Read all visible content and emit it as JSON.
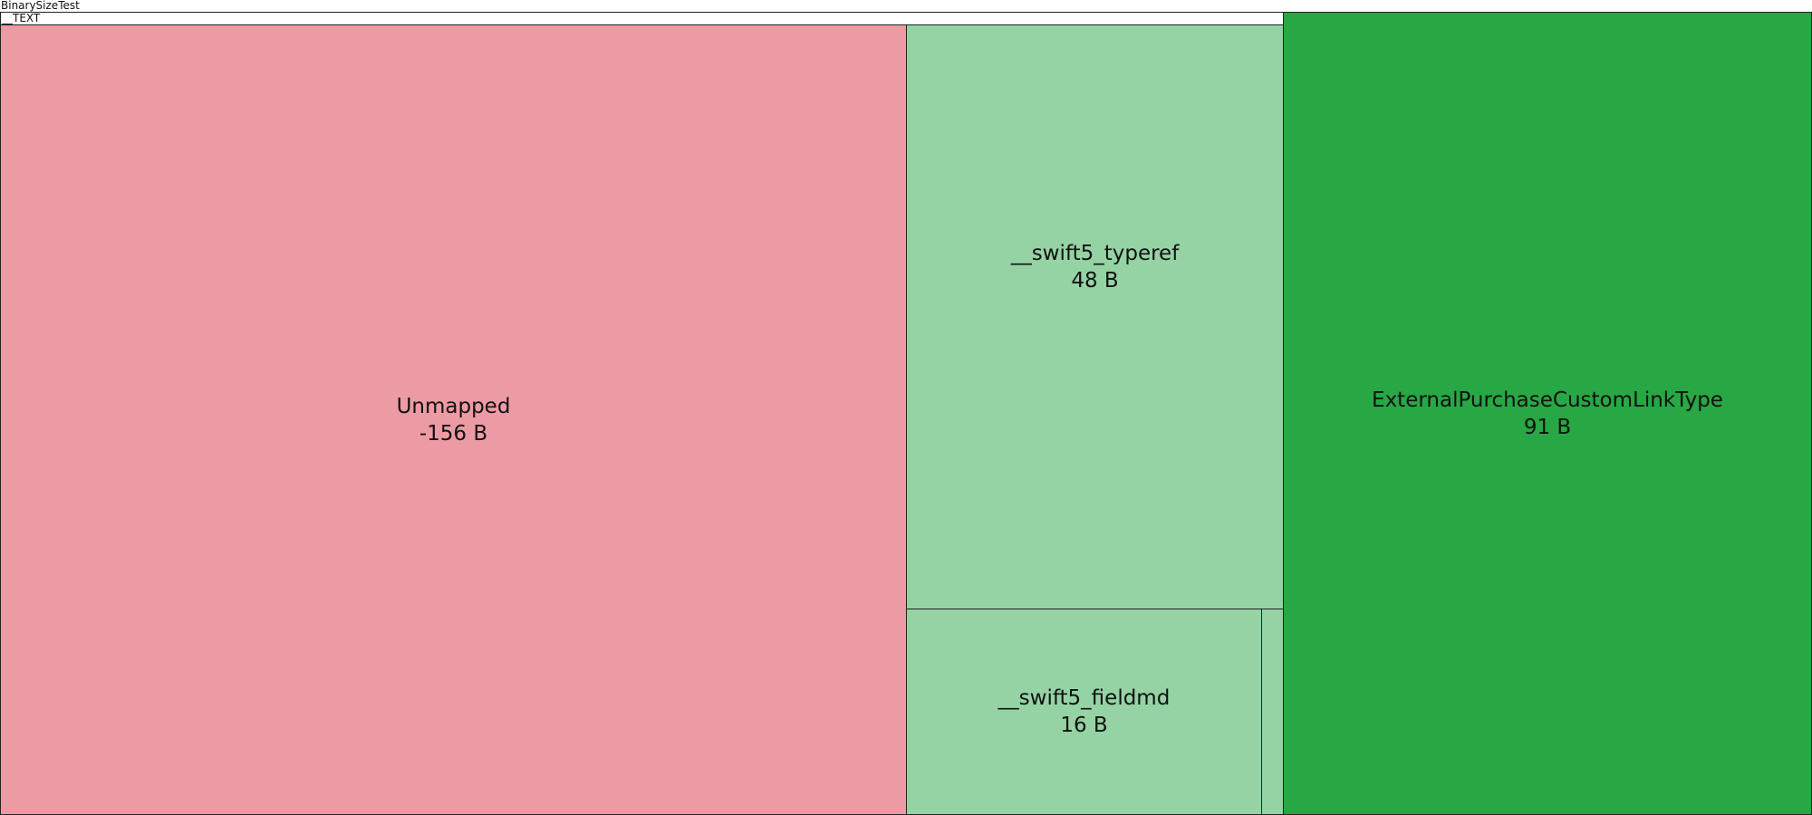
{
  "root": {
    "label": "BinarySizeTest"
  },
  "segment": {
    "label": "__TEXT"
  },
  "nodes": [
    {
      "name": "Unmapped",
      "size": "-156 B"
    },
    {
      "name": "__swift5_typeref",
      "size": "48 B"
    },
    {
      "name": "__swift5_fieldmd",
      "size": "16 B"
    },
    {
      "name": "ExternalPurchaseCustomLinkType",
      "size": "91 B"
    }
  ]
}
